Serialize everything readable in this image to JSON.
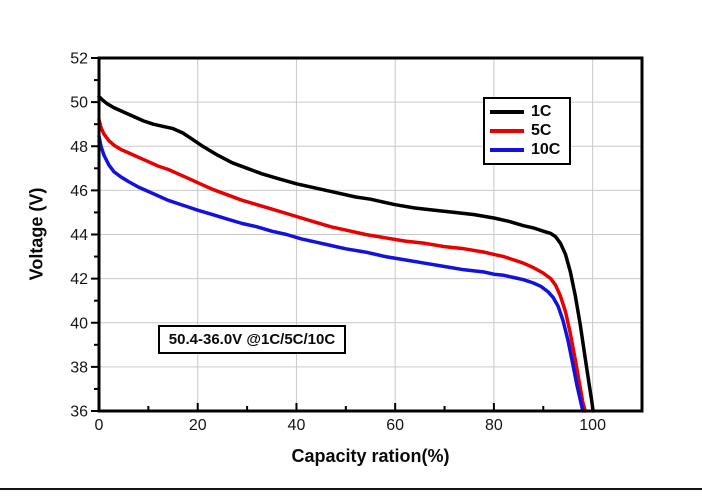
{
  "chart_data": {
    "type": "line",
    "title": "",
    "xlabel": "Capacity ration(%)",
    "ylabel": "Voltage (V)",
    "xlim": [
      0,
      110
    ],
    "ylim": [
      36,
      52
    ],
    "grid": "major-both",
    "legend_position": "upper-right-inside",
    "annotation": "50.4-36.0V @1C/5C/10C",
    "xaxis": {
      "major_ticks": [
        0,
        20,
        40,
        60,
        80,
        100
      ],
      "major_tick_labels": [
        "0",
        "20",
        "40",
        "60",
        "80",
        "100"
      ],
      "minor_ticks": [
        10,
        30,
        50,
        70,
        90,
        110
      ]
    },
    "yaxis": {
      "major_ticks": [
        36,
        38,
        40,
        42,
        44,
        46,
        48,
        50,
        52
      ],
      "major_tick_labels": [
        "36",
        "38",
        "40",
        "42",
        "44",
        "46",
        "48",
        "50",
        "52"
      ],
      "minor_ticks": [
        37,
        39,
        41,
        43,
        45,
        47,
        49,
        51
      ]
    },
    "colors": {
      "grid": "#c9c9c9",
      "axis": "#000000"
    },
    "series": [
      {
        "name": "1C",
        "color": "#000000",
        "x": [
          0,
          0.7,
          1.5,
          3,
          5,
          7,
          9,
          11,
          13,
          15,
          17,
          19,
          21,
          24,
          27,
          30,
          33,
          36,
          40,
          44,
          48,
          52,
          55,
          57,
          60,
          64,
          68,
          72,
          76,
          80,
          83,
          86,
          88,
          90,
          91.5,
          92.5,
          93.5,
          94.5,
          95.5,
          96.5,
          97.5,
          98.5,
          99.3,
          99.8,
          100.1
        ],
        "y": [
          50.25,
          50.1,
          49.95,
          49.75,
          49.55,
          49.35,
          49.15,
          49.0,
          48.9,
          48.8,
          48.6,
          48.3,
          48.0,
          47.6,
          47.25,
          47.0,
          46.75,
          46.55,
          46.3,
          46.1,
          45.9,
          45.7,
          45.6,
          45.5,
          45.35,
          45.2,
          45.1,
          45.0,
          44.9,
          44.75,
          44.6,
          44.4,
          44.3,
          44.15,
          44.05,
          43.9,
          43.6,
          43.1,
          42.3,
          41.2,
          39.9,
          38.4,
          37.2,
          36.5,
          36.0
        ]
      },
      {
        "name": "5C",
        "color": "#e80000",
        "x": [
          0,
          0.4,
          1,
          2,
          3,
          4.5,
          6,
          8,
          10,
          12,
          14,
          16,
          18,
          20,
          23,
          26,
          29,
          32,
          35,
          38,
          41,
          44,
          47,
          50,
          54,
          58,
          62,
          66,
          70,
          74,
          78,
          80,
          82,
          84,
          86,
          88,
          90,
          91.5,
          92.5,
          93.5,
          94.5,
          95.5,
          96.5,
          97.3,
          98.0,
          98.5
        ],
        "y": [
          49.2,
          48.85,
          48.55,
          48.25,
          48.05,
          47.85,
          47.7,
          47.5,
          47.3,
          47.1,
          46.95,
          46.75,
          46.55,
          46.35,
          46.05,
          45.8,
          45.55,
          45.35,
          45.15,
          44.95,
          44.75,
          44.55,
          44.35,
          44.2,
          44.0,
          43.85,
          43.7,
          43.6,
          43.45,
          43.35,
          43.2,
          43.1,
          43.0,
          42.85,
          42.7,
          42.5,
          42.25,
          42.0,
          41.7,
          41.2,
          40.5,
          39.5,
          38.3,
          37.3,
          36.4,
          36.0
        ]
      },
      {
        "name": "10C",
        "color": "#1212dc",
        "x": [
          0,
          0.4,
          1,
          2,
          3,
          4.5,
          6,
          8,
          10,
          12,
          14,
          16,
          18,
          20,
          23,
          26,
          29,
          32,
          35,
          38,
          41,
          44,
          47,
          50,
          54,
          58,
          62,
          66,
          70,
          74,
          78,
          80,
          82,
          84,
          86,
          88,
          89.5,
          91,
          92,
          93,
          94,
          95,
          96,
          96.8,
          97.5,
          98.0
        ],
        "y": [
          48.45,
          48.0,
          47.6,
          47.15,
          46.85,
          46.6,
          46.4,
          46.15,
          45.95,
          45.75,
          45.55,
          45.4,
          45.25,
          45.1,
          44.9,
          44.7,
          44.5,
          44.35,
          44.15,
          44.0,
          43.8,
          43.65,
          43.5,
          43.35,
          43.2,
          43.0,
          42.85,
          42.7,
          42.55,
          42.4,
          42.3,
          42.2,
          42.15,
          42.05,
          41.95,
          41.8,
          41.65,
          41.4,
          41.15,
          40.75,
          40.1,
          39.2,
          38.1,
          37.2,
          36.5,
          36.0
        ]
      }
    ]
  }
}
